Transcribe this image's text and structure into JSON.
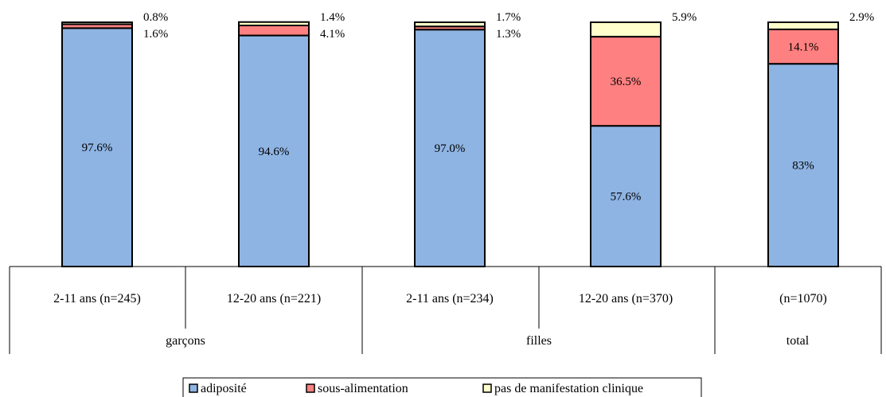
{
  "chart_data": {
    "type": "bar",
    "stacked": true,
    "normalized_percent": true,
    "groups": [
      {
        "label": "garçons",
        "categories": [
          "2-11 ans (n=245)",
          "12-20 ans (n=221)"
        ]
      },
      {
        "label": "filles",
        "categories": [
          "2-11 ans (n=234)",
          "12-20 ans (n=370)"
        ]
      },
      {
        "label": "total",
        "categories": [
          "(n=1070)"
        ]
      }
    ],
    "categories": [
      "2-11 ans (n=245)",
      "12-20 ans (n=221)",
      "2-11 ans (n=234)",
      "12-20 ans (n=370)",
      "(n=1070)"
    ],
    "series": [
      {
        "name": "adiposité",
        "values": [
          97.6,
          94.6,
          97.0,
          57.6,
          83
        ],
        "labels": [
          "97.6%",
          "94.6%",
          "97.0%",
          "57.6%",
          "83%"
        ]
      },
      {
        "name": "sous-alimentation",
        "values": [
          1.6,
          4.1,
          1.3,
          36.5,
          14.1
        ],
        "labels": [
          "1.6%",
          "4.1%",
          "1.3%",
          "36.5%",
          "14.1%"
        ]
      },
      {
        "name": "pas de manifestation clinique",
        "values": [
          0.8,
          1.4,
          1.7,
          5.9,
          2.9
        ],
        "labels": [
          "0.8%",
          "1.4%",
          "1.7%",
          "5.9%",
          "2.9%"
        ]
      }
    ],
    "colors": [
      "#8EB4E3",
      "#FF8080",
      "#FFFFCC"
    ],
    "ylim": [
      0,
      100
    ],
    "legend_position": "bottom",
    "grid": false
  }
}
